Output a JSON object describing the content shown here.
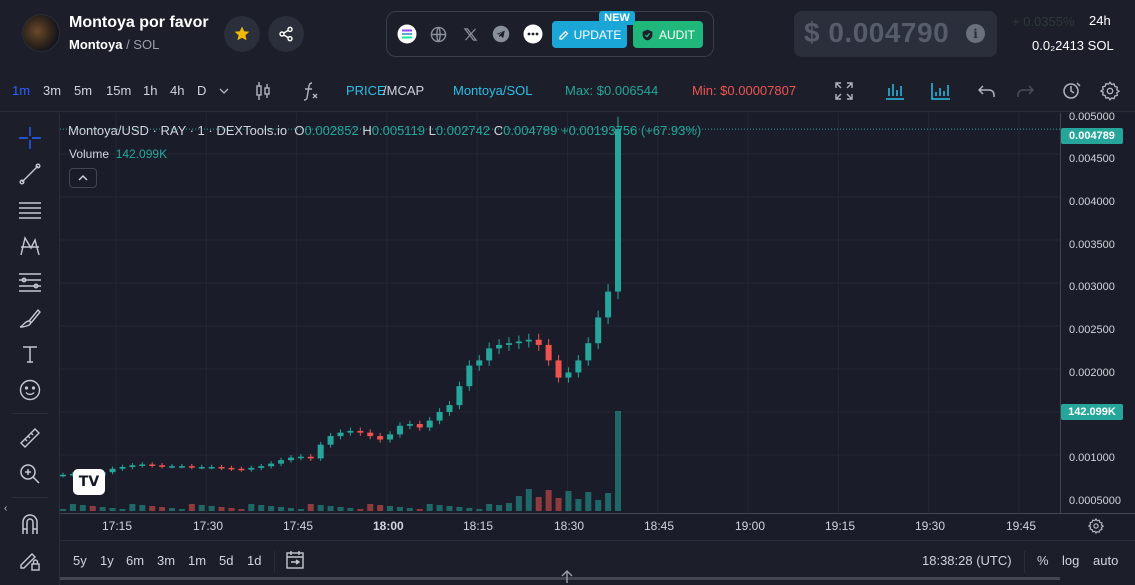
{
  "header": {
    "token_name": "Montoya por favor",
    "token_symbol": "Montoya",
    "pair_suffix": "/ SOL",
    "update_label": "UPDATE",
    "new_badge": "NEW",
    "audit_label": "AUDIT",
    "price": "$ 0.004790",
    "change": "+ 0.0355%",
    "period": "24h",
    "sol_price": "0.0₂2413",
    "sol_unit": "SOL",
    "icons": [
      "star-icon",
      "share-icon",
      "solana-icon",
      "globe-icon",
      "x-icon",
      "telegram-icon",
      "more-icon",
      "info-icon"
    ]
  },
  "toolbar": {
    "timeframes": [
      "1m",
      "3m",
      "5m",
      "15m",
      "1h",
      "4h",
      "D"
    ],
    "active_timeframe": "1m",
    "price_label": "PRICE",
    "mcap_label": "/MCAP",
    "pair_label": "Montoya/SOL",
    "max_label": "Max: $0.006544",
    "min_label": "Min: $0.00007807"
  },
  "legend": {
    "symbol": "Montoya/USD · RAY · 1 · DEXTools.io",
    "o_key": "O",
    "o_val": "0.002852",
    "h_key": "H",
    "h_val": "0.005119",
    "l_key": "L",
    "l_val": "0.002742",
    "c_key": "C",
    "c_val": "0.004789",
    "change": "+0.00193756 (+67.93%)",
    "volume_label": "Volume",
    "volume_val": "142.099K"
  },
  "chart_data": {
    "type": "candlestick",
    "x_ticks": [
      "17:15",
      "17:30",
      "17:45",
      "18:00",
      "18:15",
      "18:30",
      "18:45",
      "19:00",
      "19:15",
      "19:30",
      "19:45"
    ],
    "y_ticks": [
      "0.005000",
      "0.004500",
      "0.004000",
      "0.003500",
      "0.003000",
      "0.002500",
      "0.002000",
      "0.001000",
      "0.0005000"
    ],
    "last_price_flag": "0.004789",
    "volume_flag": "142.099K",
    "close_series": [
      0.00077,
      0.00078,
      0.00078,
      0.00076,
      0.0008,
      0.00084,
      0.00086,
      0.00088,
      0.00089,
      0.00088,
      0.00087,
      0.00087,
      0.00087,
      0.00086,
      0.00086,
      0.00086,
      0.00085,
      0.00084,
      0.00083,
      0.00085,
      0.00087,
      0.0009,
      0.00094,
      0.00097,
      0.00098,
      0.00096,
      0.00112,
      0.00122,
      0.00126,
      0.00128,
      0.00126,
      0.00122,
      0.00118,
      0.00124,
      0.00134,
      0.00136,
      0.00132,
      0.0014,
      0.0015,
      0.00158,
      0.0018,
      0.00204,
      0.0021,
      0.00224,
      0.00228,
      0.0023,
      0.00232,
      0.00234,
      0.00228,
      0.0021,
      0.0019,
      0.00196,
      0.0021,
      0.0023,
      0.0026,
      0.0029,
      0.004789
    ],
    "up_color": "#26a69a",
    "down_color": "#ef5350"
  },
  "xaxis_time": "18:38:28 (UTC)",
  "ranges": [
    "5y",
    "1y",
    "6m",
    "3m",
    "1m",
    "5d",
    "1d"
  ],
  "bottom_right": {
    "percent": "%",
    "log": "log",
    "auto": "auto"
  }
}
